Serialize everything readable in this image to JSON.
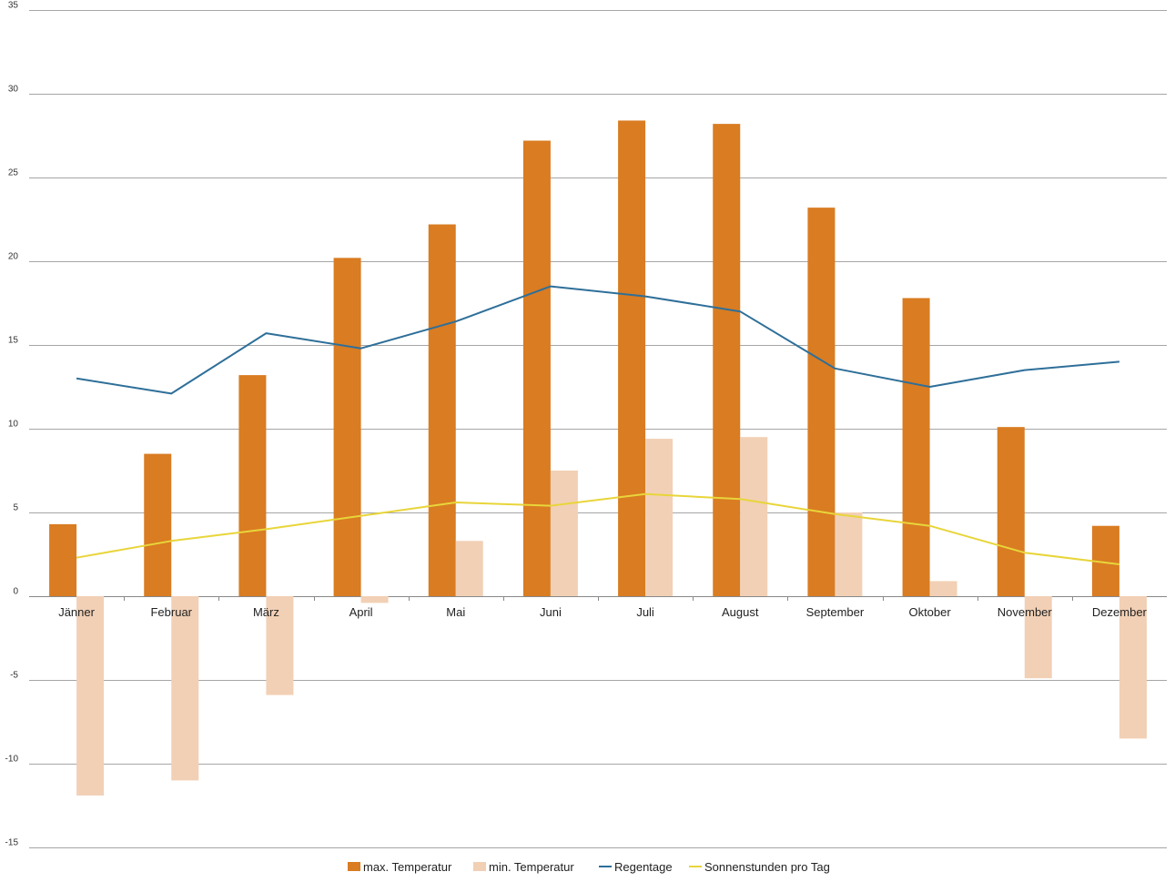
{
  "chart_data": {
    "type": "bar",
    "categories": [
      "Jänner",
      "Februar",
      "März",
      "April",
      "Mai",
      "Juni",
      "Juli",
      "August",
      "September",
      "Oktober",
      "November",
      "Dezember"
    ],
    "series": [
      {
        "name": "max. Temperatur",
        "kind": "bar",
        "color": "#d97c22",
        "values": [
          4.3,
          8.5,
          13.2,
          20.2,
          22.2,
          27.2,
          28.4,
          28.2,
          23.2,
          17.8,
          10.1,
          4.2
        ]
      },
      {
        "name": "min. Temperatur",
        "kind": "bar",
        "color": "#f2d0b5",
        "values": [
          -11.9,
          -11.0,
          -5.9,
          -0.4,
          3.3,
          7.5,
          9.4,
          9.5,
          5.0,
          0.9,
          -4.9,
          -8.5
        ]
      },
      {
        "name": "Regentage",
        "kind": "line",
        "color": "#2e6f99",
        "values": [
          13.0,
          12.1,
          15.7,
          14.8,
          16.4,
          18.5,
          17.9,
          17.0,
          13.6,
          12.5,
          13.5,
          14.0
        ]
      },
      {
        "name": "Sonnenstunden pro Tag",
        "kind": "line",
        "color": "#e8d53a",
        "values": [
          2.3,
          3.3,
          4.0,
          4.8,
          5.6,
          5.4,
          6.1,
          5.8,
          4.9,
          4.2,
          2.6,
          1.9
        ]
      }
    ],
    "yticks": [
      35,
      30,
      25,
      20,
      15,
      10,
      5,
      0,
      -5,
      -10,
      -15
    ],
    "ylim": [
      -15,
      35
    ],
    "grid": true,
    "legend_position": "bottom"
  }
}
